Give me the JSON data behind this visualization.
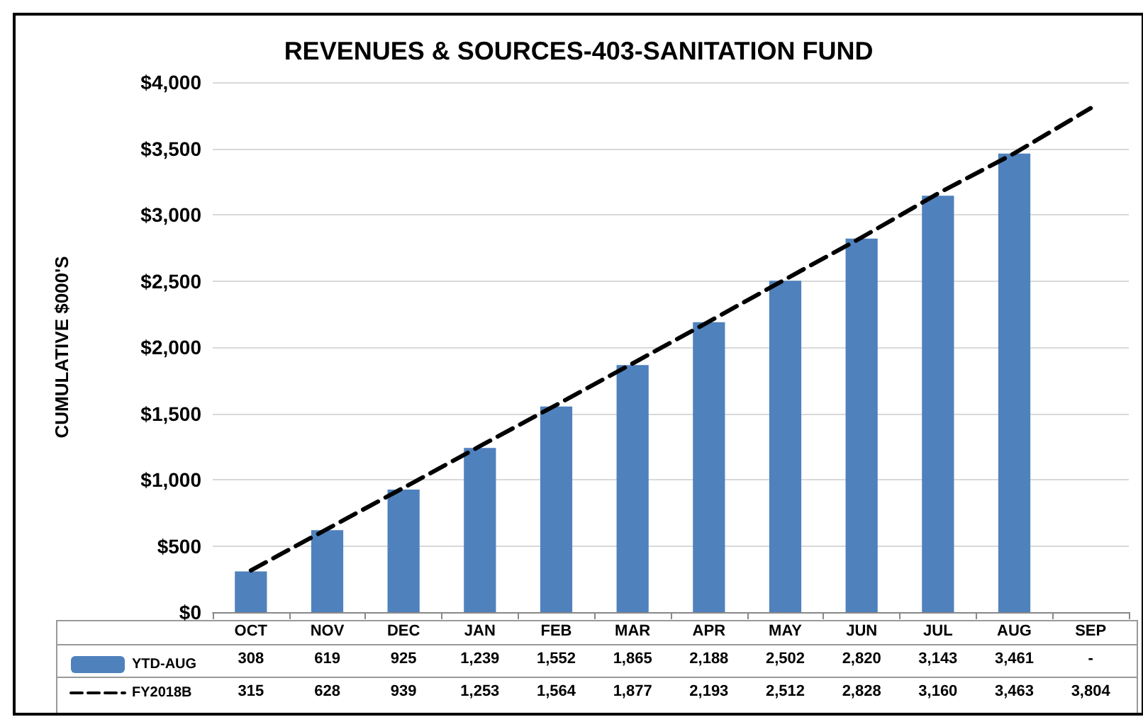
{
  "chart_data": {
    "type": "bar",
    "title": "REVENUES & SOURCES-403-SANITATION FUND",
    "ylabel": "CUMULATIVE $000'S",
    "categories": [
      "OCT",
      "NOV",
      "DEC",
      "JAN",
      "FEB",
      "MAR",
      "APR",
      "MAY",
      "JUN",
      "JUL",
      "AUG",
      "SEP"
    ],
    "series": [
      {
        "name": "YTD-AUG",
        "color": "#4f81bd",
        "values": [
          308,
          619,
          925,
          1239,
          1552,
          1865,
          2188,
          2502,
          2820,
          3143,
          3461,
          null
        ],
        "value_labels": [
          "308",
          "619",
          "925",
          "1,239",
          "1,552",
          "1,865",
          "2,188",
          "2,502",
          "2,820",
          "3,143",
          "3,461",
          "-"
        ]
      },
      {
        "name": "FY2018B",
        "type": "line",
        "color": "#000000",
        "line_style": "dashed",
        "values": [
          315,
          628,
          939,
          1253,
          1564,
          1877,
          2193,
          2512,
          2828,
          3160,
          3463,
          3804
        ],
        "value_labels": [
          "315",
          "628",
          "939",
          "1,253",
          "1,564",
          "1,877",
          "2,193",
          "2,512",
          "2,828",
          "3,160",
          "3,463",
          "3,804"
        ]
      }
    ],
    "marker": "none",
    "ylim": [
      0,
      4000
    ],
    "yticks": [
      {
        "value": 0,
        "label": "$0"
      },
      {
        "value": 500,
        "label": "$500"
      },
      {
        "value": 1000,
        "label": "$1,000"
      },
      {
        "value": 1500,
        "label": "$1,500"
      },
      {
        "value": 2000,
        "label": "$2,000"
      },
      {
        "value": 2500,
        "label": "$2,500"
      },
      {
        "value": 3000,
        "label": "$3,000"
      },
      {
        "value": 3500,
        "label": "$3,500"
      },
      {
        "value": 4000,
        "label": "$4,000"
      }
    ],
    "grid": "y",
    "legend": "bottom"
  }
}
